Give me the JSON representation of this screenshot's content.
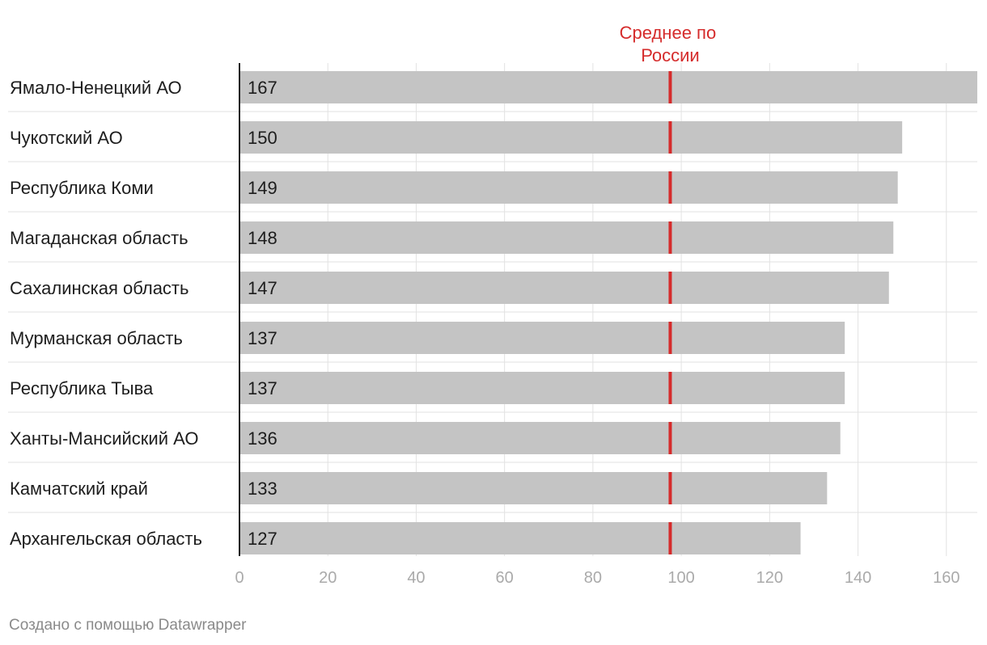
{
  "chart_data": {
    "type": "bar",
    "orientation": "horizontal",
    "categories": [
      "Ямало-Ненецкий АО",
      "Чукотский АО",
      "Республика Коми",
      "Магаданская область",
      "Сахалинская область",
      "Мурманская область",
      "Республика Тыва",
      "Ханты-Мансийский АО",
      "Камчатский край",
      "Архангельская область"
    ],
    "values": [
      167,
      150,
      149,
      148,
      147,
      137,
      137,
      136,
      133,
      127
    ],
    "value_labels": [
      "167",
      "150",
      "149",
      "148",
      "147",
      "137",
      "137",
      "136",
      "133",
      "127"
    ],
    "xlim": [
      0,
      167
    ],
    "x_ticks": [
      0,
      20,
      40,
      60,
      80,
      100,
      120,
      140,
      160
    ],
    "x_tick_labels": [
      "0",
      "20",
      "40",
      "60",
      "80",
      "100",
      "120",
      "140",
      "160"
    ],
    "reference_line": {
      "value": 97.5,
      "label_lines": [
        "Среднее по",
        "России"
      ]
    },
    "grid": true
  },
  "colors": {
    "bar": "#c4c4c4",
    "reference": "#d52b2b",
    "grid": "#e2e2e2",
    "text": "#1d1d1d",
    "tick": "#aaaaaa",
    "footer": "#8a8a8a"
  },
  "footer": {
    "text": "Создано с помощью Datawrapper"
  }
}
